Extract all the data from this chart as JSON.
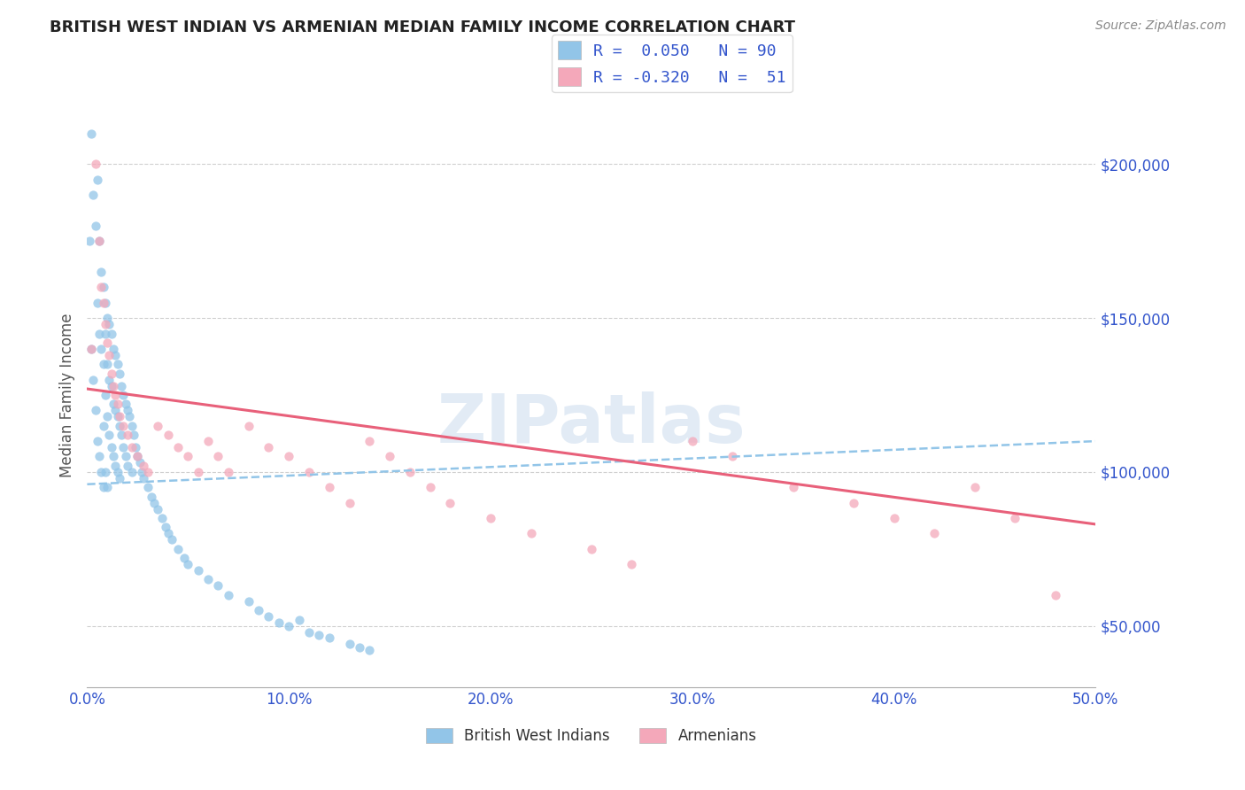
{
  "title": "BRITISH WEST INDIAN VS ARMENIAN MEDIAN FAMILY INCOME CORRELATION CHART",
  "source_text": "Source: ZipAtlas.com",
  "ylabel": "Median Family Income",
  "xlim": [
    0.0,
    0.5
  ],
  "ylim": [
    30000,
    220000
  ],
  "yticks": [
    50000,
    100000,
    150000,
    200000
  ],
  "ytick_labels": [
    "$50,000",
    "$100,000",
    "$150,000",
    "$200,000"
  ],
  "xticks": [
    0.0,
    0.1,
    0.2,
    0.3,
    0.4,
    0.5
  ],
  "xtick_labels": [
    "0.0%",
    "10.0%",
    "20.0%",
    "30.0%",
    "40.0%",
    "50.0%"
  ],
  "bwi_R": 0.05,
  "bwi_N": 90,
  "arm_R": -0.32,
  "arm_N": 51,
  "bwi_color": "#92c5e8",
  "arm_color": "#f4a8ba",
  "bwi_line_color": "#92c5e8",
  "arm_line_color": "#e8607a",
  "legend_text_color": "#3355cc",
  "title_color": "#222222",
  "axis_color": "#3355cc",
  "grid_color": "#d0d0d0",
  "watermark": "ZIPatlas",
  "bwi_line_x0": 0.0,
  "bwi_line_y0": 96000,
  "bwi_line_x1": 0.5,
  "bwi_line_y1": 110000,
  "arm_line_x0": 0.0,
  "arm_line_y0": 127000,
  "arm_line_x1": 0.5,
  "arm_line_y1": 83000,
  "bwi_x": [
    0.001,
    0.002,
    0.002,
    0.003,
    0.003,
    0.004,
    0.004,
    0.005,
    0.005,
    0.005,
    0.006,
    0.006,
    0.006,
    0.007,
    0.007,
    0.007,
    0.008,
    0.008,
    0.008,
    0.008,
    0.009,
    0.009,
    0.009,
    0.009,
    0.01,
    0.01,
    0.01,
    0.01,
    0.011,
    0.011,
    0.011,
    0.012,
    0.012,
    0.012,
    0.013,
    0.013,
    0.013,
    0.014,
    0.014,
    0.014,
    0.015,
    0.015,
    0.015,
    0.016,
    0.016,
    0.016,
    0.017,
    0.017,
    0.018,
    0.018,
    0.019,
    0.019,
    0.02,
    0.02,
    0.021,
    0.022,
    0.022,
    0.023,
    0.024,
    0.025,
    0.026,
    0.027,
    0.028,
    0.03,
    0.032,
    0.033,
    0.035,
    0.037,
    0.039,
    0.04,
    0.042,
    0.045,
    0.048,
    0.05,
    0.055,
    0.06,
    0.065,
    0.07,
    0.08,
    0.085,
    0.09,
    0.095,
    0.1,
    0.11,
    0.12,
    0.13,
    0.135,
    0.14,
    0.105,
    0.115
  ],
  "bwi_y": [
    175000,
    210000,
    140000,
    190000,
    130000,
    180000,
    120000,
    195000,
    155000,
    110000,
    175000,
    145000,
    105000,
    165000,
    140000,
    100000,
    160000,
    135000,
    115000,
    95000,
    155000,
    145000,
    125000,
    100000,
    150000,
    135000,
    118000,
    95000,
    148000,
    130000,
    112000,
    145000,
    128000,
    108000,
    140000,
    122000,
    105000,
    138000,
    120000,
    102000,
    135000,
    118000,
    100000,
    132000,
    115000,
    98000,
    128000,
    112000,
    125000,
    108000,
    122000,
    105000,
    120000,
    102000,
    118000,
    115000,
    100000,
    112000,
    108000,
    105000,
    103000,
    100000,
    98000,
    95000,
    92000,
    90000,
    88000,
    85000,
    82000,
    80000,
    78000,
    75000,
    72000,
    70000,
    68000,
    65000,
    63000,
    60000,
    58000,
    55000,
    53000,
    51000,
    50000,
    48000,
    46000,
    44000,
    43000,
    42000,
    52000,
    47000
  ],
  "arm_x": [
    0.002,
    0.004,
    0.006,
    0.007,
    0.008,
    0.009,
    0.01,
    0.011,
    0.012,
    0.013,
    0.014,
    0.015,
    0.016,
    0.018,
    0.02,
    0.022,
    0.025,
    0.028,
    0.03,
    0.035,
    0.04,
    0.045,
    0.05,
    0.055,
    0.06,
    0.065,
    0.07,
    0.08,
    0.09,
    0.1,
    0.11,
    0.12,
    0.13,
    0.14,
    0.15,
    0.16,
    0.17,
    0.18,
    0.2,
    0.22,
    0.25,
    0.27,
    0.3,
    0.32,
    0.35,
    0.38,
    0.4,
    0.42,
    0.44,
    0.46,
    0.48
  ],
  "arm_y": [
    140000,
    200000,
    175000,
    160000,
    155000,
    148000,
    142000,
    138000,
    132000,
    128000,
    125000,
    122000,
    118000,
    115000,
    112000,
    108000,
    105000,
    102000,
    100000,
    115000,
    112000,
    108000,
    105000,
    100000,
    110000,
    105000,
    100000,
    115000,
    108000,
    105000,
    100000,
    95000,
    90000,
    110000,
    105000,
    100000,
    95000,
    90000,
    85000,
    80000,
    75000,
    70000,
    110000,
    105000,
    95000,
    90000,
    85000,
    80000,
    95000,
    85000,
    60000
  ]
}
